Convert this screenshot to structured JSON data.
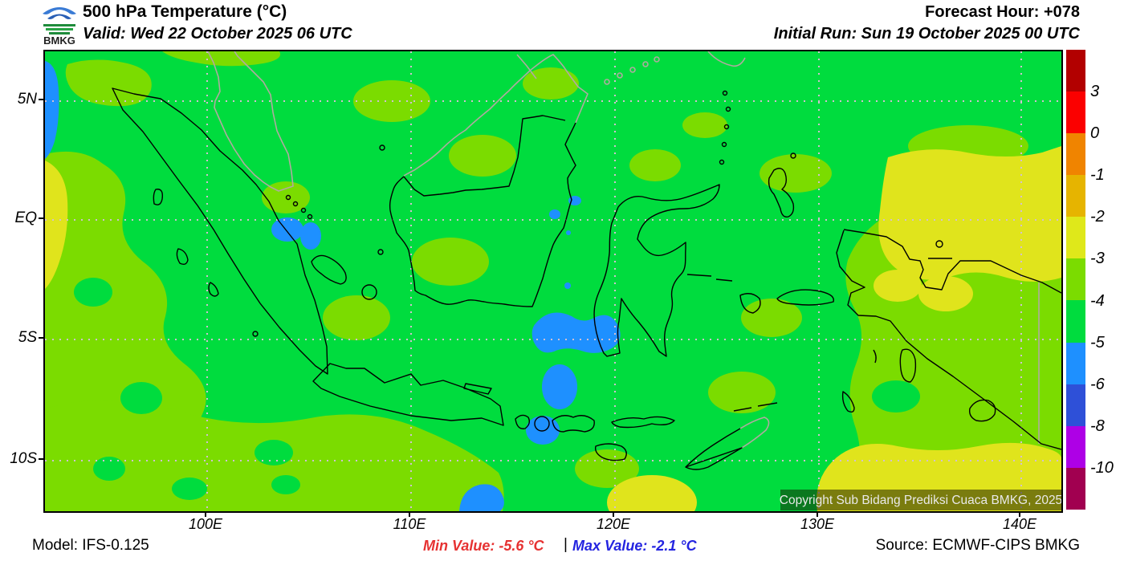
{
  "header": {
    "logo_text": "BMKG",
    "title": "500 hPa Temperature (°C)",
    "valid_line": "Valid: Wed 22 October 2025 06 UTC",
    "forecast_hour": "Forecast Hour: +078",
    "initial_run": "Initial Run: Sun 19 October 2025 00 UTC"
  },
  "map": {
    "copyright": "Copyright Sub Bidang Prediksi Cuaca BMKG, 2025",
    "lat_ticks": [
      "5N",
      "EQ",
      "5S",
      "10S"
    ],
    "lon_ticks": [
      "100E",
      "110E",
      "120E",
      "130E",
      "140E"
    ],
    "fill_legend": {
      "band_-5_-4": "#00dc3e",
      "band_-4_-3": "#7bdc00",
      "band_-3_-2": "#e0e41c",
      "band_-6_-5": "#1e90ff",
      "domestic_coastline": "#000000",
      "foreign_coastline": "#b0aaa0",
      "gridline": "#d2c0d2"
    }
  },
  "colorbar": {
    "unit_labels": [
      "3",
      "0",
      "-1",
      "-2",
      "-3",
      "-4",
      "-5",
      "-6",
      "-8",
      "-10"
    ],
    "segment_colors": [
      "#b20000",
      "#fb0000",
      "#f08400",
      "#e6b400",
      "#dfe81a",
      "#7bdc00",
      "#00dc3e",
      "#1e90ff",
      "#2e50d8",
      "#ae00e6",
      "#a10050"
    ]
  },
  "footer": {
    "model": "Model: IFS-0.125",
    "min_value": "Min Value: -5.6 °C",
    "divider": "|",
    "max_value": "Max Value: -2.1 °C",
    "source": "Source: ECMWF-CIPS BMKG",
    "min_color": "#e63232",
    "max_color": "#2424e0"
  },
  "chart_data": {
    "type": "heatmap",
    "title": "500 hPa Temperature (°C)",
    "region": {
      "lon_range": [
        "92E",
        "142E"
      ],
      "lat_range": [
        "12S",
        "7N"
      ]
    },
    "contour_levels_c": [
      -10,
      -8,
      -6,
      -5,
      -4,
      -3,
      -2,
      -1,
      0,
      3
    ],
    "min_value_c": -5.6,
    "max_value_c": -2.1,
    "field_summary": "Most of domain in -5 to -4 band (green); -4 to -3 band (yellow-green) over southwest, south and east; -3 to -2 patches (yellow) far left edge, NE of Papua and south of Papua; -6 to -5 spots (blue) west edge, near Singapore, Java Sea and south of Java"
  }
}
